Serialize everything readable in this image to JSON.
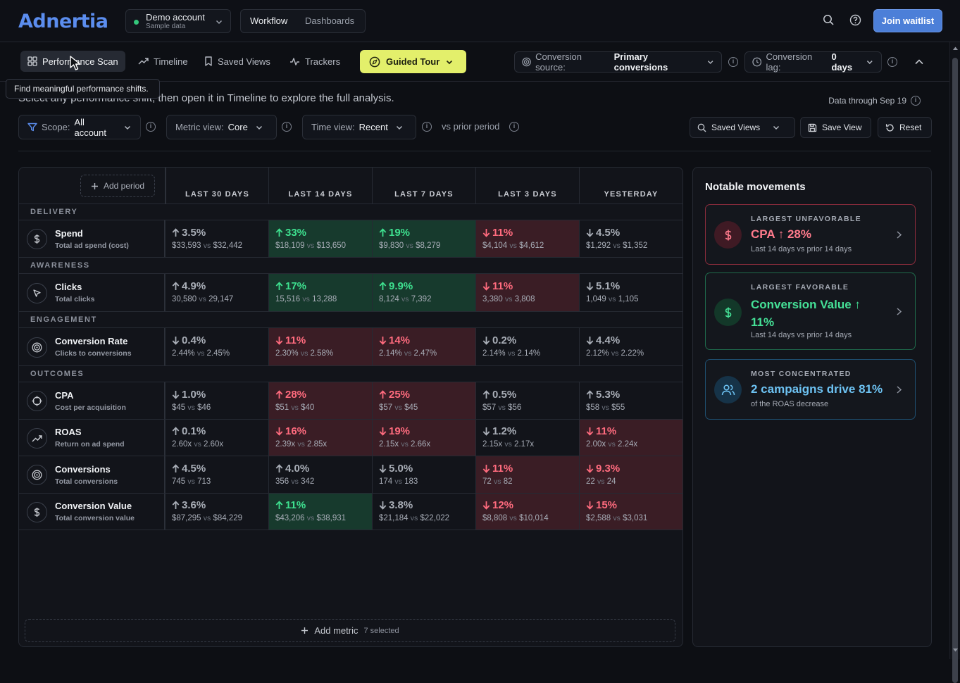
{
  "app": {
    "logo": "Adnertia"
  },
  "account": {
    "name": "Demo account",
    "sub": "Sample data"
  },
  "mode": {
    "workflow": "Workflow",
    "dashboards": "Dashboards"
  },
  "header": {
    "join_label": "Join waitlist"
  },
  "nav": {
    "tabs": [
      {
        "label": "Performance Scan",
        "icon": "grid-icon"
      },
      {
        "label": "Timeline",
        "icon": "trend-icon"
      },
      {
        "label": "Saved Views",
        "icon": "bookmark-icon"
      },
      {
        "label": "Trackers",
        "icon": "pulse-icon"
      }
    ],
    "tour_label": "Guided Tour",
    "conversion_source_label": "Conversion source:",
    "conversion_source_value": "Primary conversions",
    "conversion_lag_label": "Conversion lag:",
    "conversion_lag_value": "0 days"
  },
  "tooltip": "Find meaningful performance shifts.",
  "subtitle": "Select any performance shift, then open it in Timeline to explore the full analysis.",
  "data_through": "Data through Sep 19",
  "filters": {
    "scope_label": "Scope:",
    "scope_value": "All account",
    "metric_view_label": "Metric view:",
    "metric_view_value": "Core",
    "time_view_label": "Time view:",
    "time_view_value": "Recent",
    "compare_label": "vs prior period",
    "saved_views": "Saved Views",
    "save_view": "Save View",
    "reset": "Reset"
  },
  "table": {
    "add_period": "Add period",
    "columns": [
      "LAST 30 DAYS",
      "LAST 14 DAYS",
      "LAST 7 DAYS",
      "LAST 3 DAYS",
      "YESTERDAY"
    ],
    "sections": [
      "DELIVERY",
      "AWARENESS",
      "ENGAGEMENT",
      "OUTCOMES"
    ],
    "rows": [
      {
        "name": "Spend",
        "sub": "Total ad spend (cost)",
        "icon": "dollar-icon",
        "cells": [
          {
            "dir": "up",
            "pct": "3.5%",
            "cur": "$33,593",
            "prev": "$32,442",
            "tone": "neutral"
          },
          {
            "dir": "up",
            "pct": "33%",
            "cur": "$18,109",
            "prev": "$13,650",
            "tone": "good"
          },
          {
            "dir": "up",
            "pct": "19%",
            "cur": "$9,830",
            "prev": "$8,279",
            "tone": "good"
          },
          {
            "dir": "down",
            "pct": "11%",
            "cur": "$4,104",
            "prev": "$4,612",
            "tone": "bad"
          },
          {
            "dir": "down",
            "pct": "4.5%",
            "cur": "$1,292",
            "prev": "$1,352",
            "tone": "neutral"
          }
        ]
      },
      {
        "name": "Clicks",
        "sub": "Total clicks",
        "icon": "cursor-icon",
        "cells": [
          {
            "dir": "up",
            "pct": "4.9%",
            "cur": "30,580",
            "prev": "29,147",
            "tone": "neutral"
          },
          {
            "dir": "up",
            "pct": "17%",
            "cur": "15,516",
            "prev": "13,288",
            "tone": "good"
          },
          {
            "dir": "up",
            "pct": "9.9%",
            "cur": "8,124",
            "prev": "7,392",
            "tone": "good"
          },
          {
            "dir": "down",
            "pct": "11%",
            "cur": "3,380",
            "prev": "3,808",
            "tone": "bad"
          },
          {
            "dir": "down",
            "pct": "5.1%",
            "cur": "1,049",
            "prev": "1,105",
            "tone": "neutral"
          }
        ]
      },
      {
        "name": "Conversion Rate",
        "sub": "Clicks to conversions",
        "icon": "target-icon",
        "cells": [
          {
            "dir": "down",
            "pct": "0.4%",
            "cur": "2.44%",
            "prev": "2.45%",
            "tone": "neutral"
          },
          {
            "dir": "down",
            "pct": "11%",
            "cur": "2.30%",
            "prev": "2.58%",
            "tone": "bad"
          },
          {
            "dir": "down",
            "pct": "14%",
            "cur": "2.14%",
            "prev": "2.47%",
            "tone": "bad"
          },
          {
            "dir": "down",
            "pct": "0.2%",
            "cur": "2.14%",
            "prev": "2.14%",
            "tone": "neutral"
          },
          {
            "dir": "down",
            "pct": "4.4%",
            "cur": "2.12%",
            "prev": "2.22%",
            "tone": "neutral"
          }
        ]
      },
      {
        "name": "CPA",
        "sub": "Cost per acquisition",
        "icon": "crosshair-icon",
        "cells": [
          {
            "dir": "down",
            "pct": "1.0%",
            "cur": "$45",
            "prev": "$46",
            "tone": "neutral"
          },
          {
            "dir": "up",
            "pct": "28%",
            "cur": "$51",
            "prev": "$40",
            "tone": "bad"
          },
          {
            "dir": "up",
            "pct": "25%",
            "cur": "$57",
            "prev": "$45",
            "tone": "bad"
          },
          {
            "dir": "up",
            "pct": "0.5%",
            "cur": "$57",
            "prev": "$56",
            "tone": "neutral"
          },
          {
            "dir": "up",
            "pct": "5.3%",
            "cur": "$58",
            "prev": "$55",
            "tone": "neutral"
          }
        ]
      },
      {
        "name": "ROAS",
        "sub": "Return on ad spend",
        "icon": "trend-icon",
        "cells": [
          {
            "dir": "up",
            "pct": "0.1%",
            "cur": "2.60x",
            "prev": "2.60x",
            "tone": "neutral"
          },
          {
            "dir": "down",
            "pct": "16%",
            "cur": "2.39x",
            "prev": "2.85x",
            "tone": "bad"
          },
          {
            "dir": "down",
            "pct": "19%",
            "cur": "2.15x",
            "prev": "2.66x",
            "tone": "bad"
          },
          {
            "dir": "down",
            "pct": "1.2%",
            "cur": "2.15x",
            "prev": "2.17x",
            "tone": "neutral"
          },
          {
            "dir": "down",
            "pct": "11%",
            "cur": "2.00x",
            "prev": "2.24x",
            "tone": "bad"
          }
        ]
      },
      {
        "name": "Conversions",
        "sub": "Total conversions",
        "icon": "target-icon",
        "cells": [
          {
            "dir": "up",
            "pct": "4.5%",
            "cur": "745",
            "prev": "713",
            "tone": "neutral"
          },
          {
            "dir": "up",
            "pct": "4.0%",
            "cur": "356",
            "prev": "342",
            "tone": "neutral"
          },
          {
            "dir": "down",
            "pct": "5.0%",
            "cur": "174",
            "prev": "183",
            "tone": "neutral"
          },
          {
            "dir": "down",
            "pct": "11%",
            "cur": "72",
            "prev": "82",
            "tone": "bad"
          },
          {
            "dir": "down",
            "pct": "9.3%",
            "cur": "22",
            "prev": "24",
            "tone": "bad"
          }
        ]
      },
      {
        "name": "Conversion Value",
        "sub": "Total conversion value",
        "icon": "dollar-icon",
        "cells": [
          {
            "dir": "up",
            "pct": "3.6%",
            "cur": "$87,295",
            "prev": "$84,229",
            "tone": "neutral"
          },
          {
            "dir": "up",
            "pct": "11%",
            "cur": "$43,206",
            "prev": "$38,931",
            "tone": "good"
          },
          {
            "dir": "down",
            "pct": "3.8%",
            "cur": "$21,184",
            "prev": "$22,022",
            "tone": "neutral"
          },
          {
            "dir": "down",
            "pct": "12%",
            "cur": "$8,808",
            "prev": "$10,014",
            "tone": "bad"
          },
          {
            "dir": "down",
            "pct": "15%",
            "cur": "$2,588",
            "prev": "$3,031",
            "tone": "bad"
          }
        ]
      }
    ],
    "vs_word": "vs",
    "add_metric": "Add metric",
    "selected": "7 selected"
  },
  "notable": {
    "title": "Notable movements",
    "cards": [
      {
        "kicker": "LARGEST UNFAVORABLE",
        "headline": "CPA ↑ 28%",
        "desc": "Last 14 days vs prior 14 days",
        "color": "#ff7b8c",
        "border": "#8a2c3c"
      },
      {
        "kicker": "LARGEST FAVORABLE",
        "headline": "Conversion Value ↑ 11%",
        "desc": "Last 14 days vs prior 14 days",
        "color": "#45e197",
        "border": "#1f6a4b"
      },
      {
        "kicker": "MOST CONCENTRATED",
        "headline": "2 campaigns drive 81%",
        "desc": "of the ROAS decrease",
        "color": "#6dc2f2",
        "border": "#1f4f70"
      }
    ]
  }
}
